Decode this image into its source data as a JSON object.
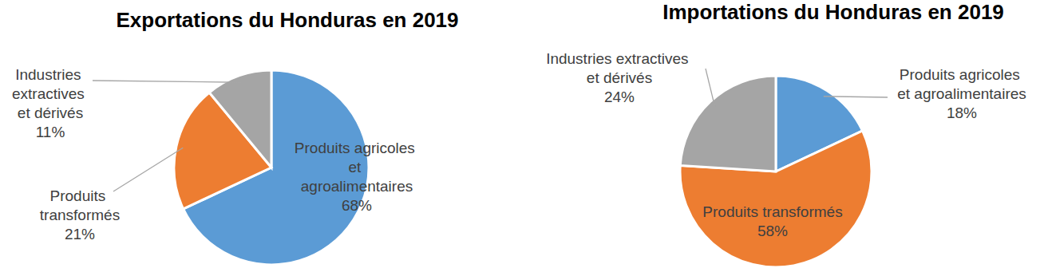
{
  "chart_data": [
    {
      "type": "pie",
      "title": "Exportations du Honduras en 2019",
      "categories": [
        "Produits agricoles et agroalimentaires",
        "Produits transformés",
        "Industries extractives et dérivés"
      ],
      "values": [
        68,
        21,
        11
      ],
      "value_labels": [
        "68%",
        "21%",
        "11%"
      ],
      "colors": [
        "#5b9bd5",
        "#ed7d31",
        "#a5a5a5"
      ],
      "data_labels": true
    },
    {
      "type": "pie",
      "title": "Importations du Honduras en 2019",
      "categories": [
        "Produits agricoles et agroalimentaires",
        "Produits transformés",
        "Industries extractives et dérivés"
      ],
      "values": [
        18,
        58,
        24
      ],
      "value_labels": [
        "18%",
        "58%",
        "24%"
      ],
      "colors": [
        "#5b9bd5",
        "#ed7d31",
        "#a5a5a5"
      ],
      "data_labels": true
    }
  ]
}
